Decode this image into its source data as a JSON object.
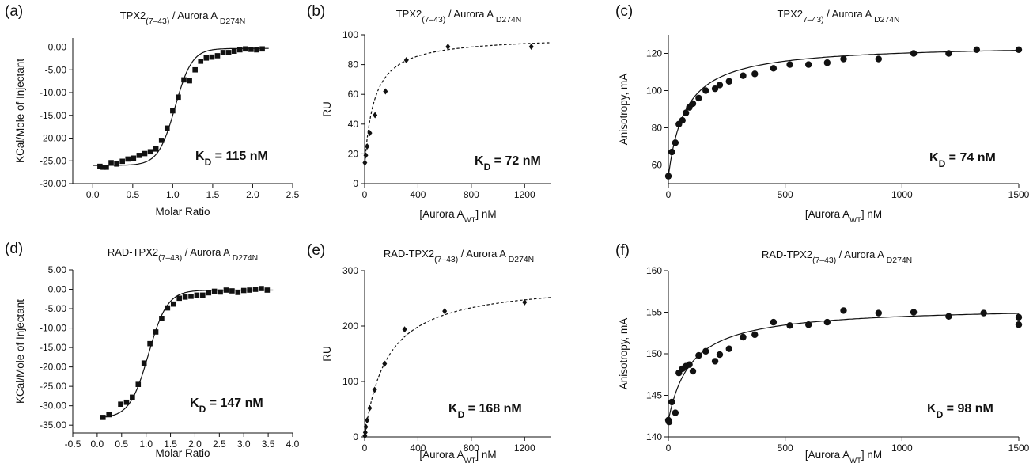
{
  "chart_data": [
    {
      "panel": "(a)",
      "type": "scatter",
      "title_main": "TPX2",
      "title_sub": "(7–43)",
      "title_after": " / Aurora A ",
      "title_sub2": "D274N",
      "xlabel": "Molar Ratio",
      "ylabel": "KCal/Mole of Injectant",
      "xlim": [
        -0.25,
        2.5
      ],
      "ylim": [
        -30,
        2
      ],
      "xticks": [
        0.0,
        0.5,
        1.0,
        1.5,
        2.0,
        2.5
      ],
      "xticklabels": [
        "0.0",
        "0.5",
        "1.0",
        "1.5",
        "2.0",
        "2.5"
      ],
      "yticks": [
        0,
        -5,
        -10,
        -15,
        -20,
        -25,
        -30
      ],
      "yticklabels": [
        "0.00",
        "-5.00",
        "-10.00",
        "-15.00",
        "-20.00",
        "-25.00",
        "-30.00"
      ],
      "annotation_main": "K",
      "annotation_sub": "D",
      "annotation_after": " = 115 nM",
      "marker": "square",
      "x": [
        0.09,
        0.13,
        0.17,
        0.23,
        0.3,
        0.37,
        0.44,
        0.51,
        0.58,
        0.65,
        0.72,
        0.79,
        0.86,
        0.93,
        1.0,
        1.07,
        1.14,
        1.21,
        1.28,
        1.35,
        1.42,
        1.49,
        1.56,
        1.63,
        1.7,
        1.77,
        1.84,
        1.91,
        1.98,
        2.05,
        2.12
      ],
      "y": [
        -26.2,
        -26.4,
        -26.4,
        -25.4,
        -25.7,
        -25.1,
        -24.6,
        -24.4,
        -23.8,
        -23.4,
        -23.0,
        -22.4,
        -20.5,
        -17.8,
        -14.0,
        -11.0,
        -7.2,
        -7.4,
        -5.0,
        -3.1,
        -2.4,
        -2.2,
        -1.9,
        -1.2,
        -1.2,
        -0.9,
        -0.6,
        -0.4,
        -0.5,
        -0.6,
        -0.4
      ],
      "fit_type": "sigmoid",
      "fit_params": {
        "bottom": -26.0,
        "top": -0.3,
        "x0": 1.03,
        "k": 9.5
      },
      "fit_range": [
        0.0,
        2.2
      ]
    },
    {
      "panel": "(b)",
      "type": "scatter",
      "title_main": "TPX2",
      "title_sub": "(7–43)",
      "title_after": " / Aurora A ",
      "title_sub2": "D274N",
      "xlabel_main": "[Aurora A",
      "xlabel_sub": "WT",
      "xlabel_after": "] nM",
      "ylabel": "RU",
      "xlim": [
        0,
        1400
      ],
      "ylim": [
        0,
        100
      ],
      "xticks": [
        0,
        400,
        800,
        1200
      ],
      "xticklabels": [
        "0",
        "400",
        "800",
        "1200"
      ],
      "yticks": [
        0,
        20,
        40,
        60,
        80,
        100
      ],
      "yticklabels": [
        "0",
        "20",
        "40",
        "60",
        "80",
        "100"
      ],
      "annotation_main": "K",
      "annotation_sub": "D",
      "annotation_after": " = 72 nM",
      "marker": "diamond",
      "x": [
        2,
        9,
        19,
        39,
        78,
        156,
        313,
        625,
        1250
      ],
      "y": [
        14,
        19,
        25,
        34,
        46,
        62,
        83,
        92,
        92
      ],
      "fit_type": "hyperbola",
      "fit_params": {
        "base": 12,
        "amp": 87,
        "kd": 72
      },
      "fit_range": [
        0,
        1400
      ],
      "fit_dashed": true
    },
    {
      "panel": "(c)",
      "type": "scatter",
      "title_main": "TPX2",
      "title_sub": "7–43)",
      "title_after": " / Aurora A ",
      "title_sub2": "D274N",
      "xlabel_main": "[Aurora A",
      "xlabel_sub": "WT",
      "xlabel_after": "] nM",
      "ylabel": "Anisotropy, mA",
      "xlim": [
        0,
        1500
      ],
      "ylim": [
        50,
        130
      ],
      "xticks": [
        0,
        500,
        1000,
        1500
      ],
      "xticklabels": [
        "0",
        "500",
        "1000",
        "1500"
      ],
      "yticks": [
        60,
        80,
        100,
        120
      ],
      "yticklabels": [
        "60",
        "80",
        "100",
        "120"
      ],
      "annotation_main": "K",
      "annotation_sub": "D",
      "annotation_after": " = 74 nM",
      "marker": "circle",
      "x": [
        0,
        15,
        30,
        45,
        60,
        75,
        90,
        105,
        130,
        160,
        200,
        220,
        260,
        320,
        370,
        450,
        520,
        600,
        680,
        750,
        900,
        1050,
        1200,
        1320,
        1500
      ],
      "y": [
        54,
        67,
        72,
        82,
        84,
        88,
        91,
        93,
        96,
        100,
        101,
        103,
        105,
        108,
        109,
        112,
        114,
        114,
        115,
        117,
        117,
        120,
        120,
        122,
        122
      ],
      "fit_type": "hyperbola",
      "fit_params": {
        "base": 54,
        "amp": 71,
        "kd": 74
      },
      "fit_range": [
        0,
        1500
      ]
    },
    {
      "panel": "(d)",
      "type": "scatter",
      "title_main": "RAD-TPX2",
      "title_sub": "(7–43)",
      "title_after": " / Aurora A ",
      "title_sub2": "D274N",
      "xlabel": "Molar Ratio",
      "ylabel": "KCal/Mole of Injectant",
      "xlim": [
        -0.5,
        4.0
      ],
      "ylim": [
        -37,
        5
      ],
      "xticks": [
        -0.5,
        0.0,
        0.5,
        1.0,
        1.5,
        2.0,
        2.5,
        3.0,
        3.5,
        4.0
      ],
      "xticklabels": [
        "-0.5",
        "0.0",
        "0.5",
        "1.0",
        "1.5",
        "2.0",
        "2.5",
        "3.0",
        "3.5",
        "4.0"
      ],
      "yticks": [
        5,
        0,
        -5,
        -10,
        -15,
        -20,
        -25,
        -30,
        -35
      ],
      "yticklabels": [
        "5.00",
        "0.00",
        "-5.00",
        "-10.00",
        "-15.00",
        "-20.00",
        "-25.00",
        "-30.00",
        "-35.00"
      ],
      "annotation_main": "K",
      "annotation_sub": "D",
      "annotation_after": " = 147 nM",
      "marker": "square",
      "x": [
        0.12,
        0.24,
        0.48,
        0.6,
        0.72,
        0.84,
        0.96,
        1.08,
        1.2,
        1.32,
        1.44,
        1.56,
        1.68,
        1.8,
        1.92,
        2.04,
        2.16,
        2.28,
        2.4,
        2.52,
        2.64,
        2.76,
        2.88,
        3.0,
        3.12,
        3.24,
        3.36,
        3.48
      ],
      "y": [
        -33.0,
        -32.3,
        -29.6,
        -29.1,
        -27.8,
        -24.5,
        -19.0,
        -14.0,
        -11.0,
        -7.5,
        -4.8,
        -3.8,
        -2.3,
        -2.0,
        -1.8,
        -1.5,
        -1.5,
        -0.9,
        -0.5,
        -0.7,
        -0.2,
        -0.4,
        -0.8,
        -0.3,
        -0.2,
        0.0,
        0.2,
        -0.2
      ],
      "fit_type": "sigmoid",
      "fit_params": {
        "bottom": -33.2,
        "top": -0.2,
        "x0": 1.05,
        "k": 5.2
      },
      "fit_range": [
        0.1,
        3.6
      ]
    },
    {
      "panel": "(e)",
      "type": "scatter",
      "title_main": "RAD-TPX2",
      "title_sub": "(7–43)",
      "title_after": " / Aurora A ",
      "title_sub2": "D274N",
      "xlabel_main": "[Aurora A",
      "xlabel_sub": "WT",
      "xlabel_after": "] nM",
      "ylabel": "RU",
      "xlim": [
        0,
        1400
      ],
      "ylim": [
        0,
        300
      ],
      "xticks": [
        0,
        400,
        800,
        1200
      ],
      "xticklabels": [
        "0",
        "400",
        "800",
        "1200"
      ],
      "yticks": [
        0,
        100,
        200,
        300
      ],
      "yticklabels": [
        "0",
        "100",
        "200",
        "300"
      ],
      "annotation_main": "K",
      "annotation_sub": "D",
      "annotation_after": " = 168 nM",
      "marker": "diamond",
      "x": [
        2,
        5,
        9,
        19,
        38,
        75,
        150,
        300,
        600,
        1200
      ],
      "y": [
        2,
        8,
        18,
        30,
        52,
        85,
        132,
        194,
        227,
        243
      ],
      "fit_type": "hyperbola",
      "fit_params": {
        "base": 0,
        "amp": 282,
        "kd": 168
      },
      "fit_range": [
        0,
        1400
      ],
      "fit_dashed": true
    },
    {
      "panel": "(f)",
      "type": "scatter",
      "title_main": "RAD-TPX2",
      "title_sub": "(7–43)",
      "title_after": " / Aurora A ",
      "title_sub2": "D274N",
      "xlabel_main": "[Aurora A",
      "xlabel_sub": "WT",
      "xlabel_after": "] nM",
      "ylabel": "Anisotropy, mA",
      "xlim": [
        0,
        1500
      ],
      "ylim": [
        140,
        160
      ],
      "xticks": [
        0,
        500,
        1000,
        1500
      ],
      "xticklabels": [
        "0",
        "500",
        "1000",
        "1500"
      ],
      "yticks": [
        140,
        145,
        150,
        155,
        160
      ],
      "yticklabels": [
        "140",
        "145",
        "150",
        "155",
        "160"
      ],
      "annotation_main": "K",
      "annotation_sub": "D",
      "annotation_after": " = 98 nM",
      "marker": "circle",
      "x": [
        0,
        3,
        15,
        30,
        45,
        60,
        75,
        90,
        105,
        130,
        160,
        200,
        220,
        260,
        320,
        370,
        450,
        520,
        600,
        680,
        750,
        900,
        1050,
        1200,
        1350,
        1500,
        1500
      ],
      "y": [
        142,
        141.8,
        144.2,
        142.9,
        147.7,
        148.2,
        148.5,
        148.7,
        147.9,
        149.8,
        150.3,
        149.1,
        149.9,
        150.6,
        152,
        152.3,
        153.8,
        153.4,
        153.5,
        153.8,
        155.2,
        154.9,
        155,
        154.5,
        154.9,
        154.4,
        153.5
      ],
      "fit_type": "hyperbola",
      "fit_params": {
        "base": 142,
        "amp": 13.7,
        "kd": 98
      },
      "fit_range": [
        0,
        1500
      ]
    }
  ]
}
